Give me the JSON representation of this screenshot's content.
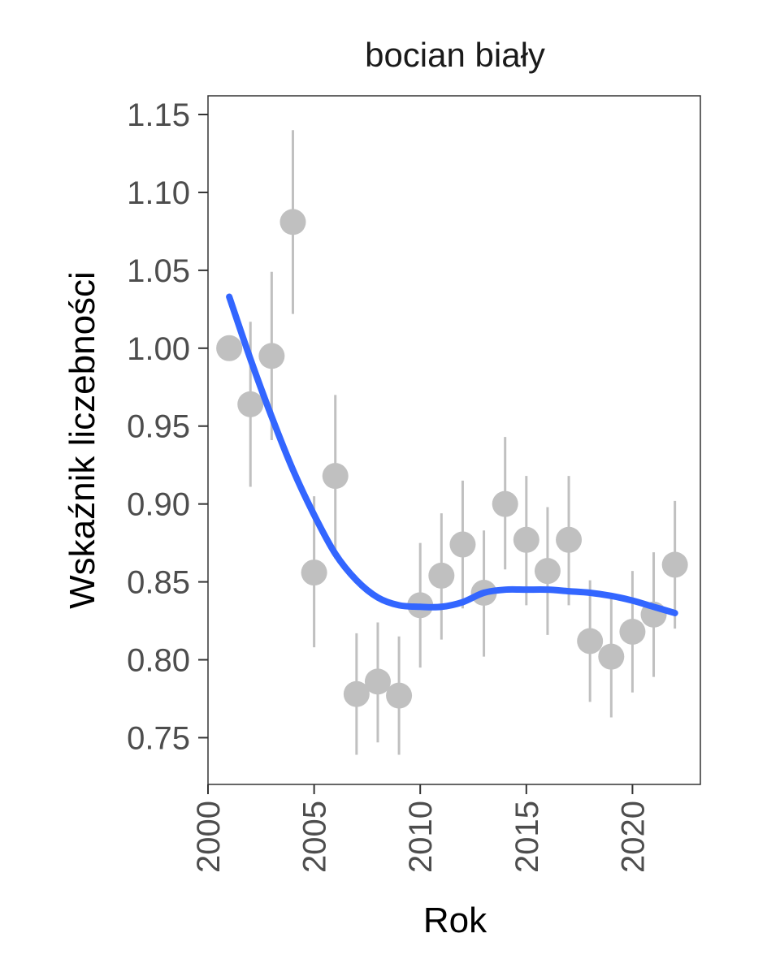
{
  "chart_data": {
    "type": "scatter",
    "title": "bocian biały",
    "xlabel": "Rok",
    "ylabel": "Wskaźnik liczebności",
    "xlim": [
      2000,
      23.2
    ],
    "ylim": [
      0.72,
      1.162
    ],
    "x_ticks": [
      "2000",
      "2005",
      "2010",
      "2015",
      "2020"
    ],
    "x_tick_values": [
      2000,
      2005,
      2010,
      2015,
      2020
    ],
    "y_ticks": [
      "0.75",
      "0.80",
      "0.85",
      "0.90",
      "0.95",
      "1.00",
      "1.05",
      "1.10",
      "1.15"
    ],
    "y_tick_values": [
      0.75,
      0.8,
      0.85,
      0.9,
      0.95,
      1.0,
      1.05,
      1.1,
      1.15
    ],
    "grid": false,
    "points": [
      {
        "x": 2001,
        "y": 1.0,
        "lo": 1.0,
        "hi": 1.0
      },
      {
        "x": 2002,
        "y": 0.964,
        "lo": 0.911,
        "hi": 1.017
      },
      {
        "x": 2003,
        "y": 0.995,
        "lo": 0.941,
        "hi": 1.049
      },
      {
        "x": 2004,
        "y": 1.081,
        "lo": 1.022,
        "hi": 1.14
      },
      {
        "x": 2005,
        "y": 0.856,
        "lo": 0.808,
        "hi": 0.905
      },
      {
        "x": 2006,
        "y": 0.918,
        "lo": 0.865,
        "hi": 0.97
      },
      {
        "x": 2007,
        "y": 0.778,
        "lo": 0.739,
        "hi": 0.817
      },
      {
        "x": 2008,
        "y": 0.786,
        "lo": 0.747,
        "hi": 0.824
      },
      {
        "x": 2009,
        "y": 0.777,
        "lo": 0.739,
        "hi": 0.815
      },
      {
        "x": 2010,
        "y": 0.835,
        "lo": 0.795,
        "hi": 0.875
      },
      {
        "x": 2011,
        "y": 0.854,
        "lo": 0.813,
        "hi": 0.894
      },
      {
        "x": 2012,
        "y": 0.874,
        "lo": 0.833,
        "hi": 0.915
      },
      {
        "x": 2013,
        "y": 0.843,
        "lo": 0.802,
        "hi": 0.883
      },
      {
        "x": 2014,
        "y": 0.9,
        "lo": 0.858,
        "hi": 0.943
      },
      {
        "x": 2015,
        "y": 0.877,
        "lo": 0.835,
        "hi": 0.918
      },
      {
        "x": 2016,
        "y": 0.857,
        "lo": 0.816,
        "hi": 0.898
      },
      {
        "x": 2017,
        "y": 0.877,
        "lo": 0.835,
        "hi": 0.918
      },
      {
        "x": 2018,
        "y": 0.812,
        "lo": 0.773,
        "hi": 0.851
      },
      {
        "x": 2019,
        "y": 0.802,
        "lo": 0.763,
        "hi": 0.84
      },
      {
        "x": 2020,
        "y": 0.818,
        "lo": 0.779,
        "hi": 0.857
      },
      {
        "x": 2021,
        "y": 0.829,
        "lo": 0.789,
        "hi": 0.869
      },
      {
        "x": 2022,
        "y": 0.861,
        "lo": 0.82,
        "hi": 0.902
      }
    ],
    "trend": {
      "x": [
        2001,
        2002,
        2003,
        2004,
        2005,
        2006,
        2007,
        2008,
        2009,
        2010,
        2011,
        2012,
        2013,
        2014,
        2015,
        2016,
        2017,
        2018,
        2019,
        2020,
        2021,
        2022
      ],
      "y": [
        1.033,
        0.993,
        0.956,
        0.922,
        0.893,
        0.868,
        0.851,
        0.84,
        0.835,
        0.834,
        0.834,
        0.837,
        0.843,
        0.845,
        0.845,
        0.845,
        0.844,
        0.843,
        0.841,
        0.838,
        0.834,
        0.83
      ]
    },
    "colors": {
      "points": "#c0c0c0",
      "errorbars": "#c0c0c0",
      "trend": "#3366ff",
      "axis": "#333333"
    }
  }
}
